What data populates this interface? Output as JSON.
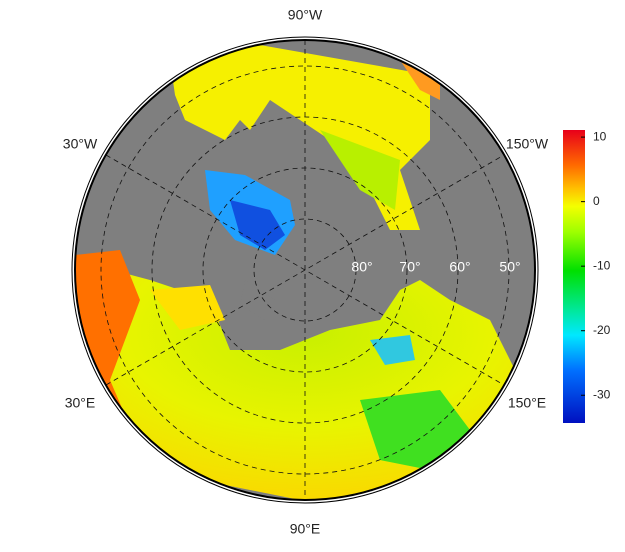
{
  "map": {
    "longitude_labels": [
      "90°W",
      "30°W",
      "150°W",
      "30°E",
      "150°E",
      "90°E"
    ],
    "latitude_labels": [
      "80°",
      "70°",
      "60°",
      "50°"
    ]
  },
  "colorbar": {
    "ylim": [
      -34.3,
      11.1
    ],
    "yticks": [
      10,
      0,
      -10,
      -20,
      -30
    ]
  }
}
